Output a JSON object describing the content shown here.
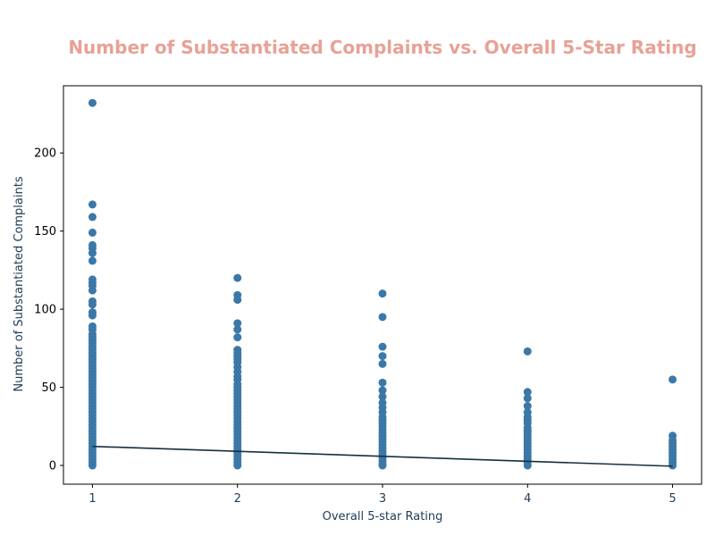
{
  "chart_data": {
    "type": "scatter",
    "title": "Number of Substantiated Complaints vs. Overall 5-Star Rating",
    "xlabel": "Overall 5-star Rating",
    "ylabel": "Number of Substantiated Complaints",
    "xlim": [
      0.8,
      5.2
    ],
    "ylim": [
      -12,
      243
    ],
    "xticks": [
      1,
      2,
      3,
      4,
      5
    ],
    "yticks": [
      0,
      50,
      100,
      150,
      200
    ],
    "grid": false,
    "legend": "none",
    "colors": {
      "title": "#e8a196",
      "points": "#3b78a8",
      "trend": "#15303f",
      "axis_text": "#1f3b57",
      "spine": "#000000"
    },
    "series": [
      {
        "x_value": 1,
        "points": [
          232,
          167,
          159,
          149,
          141,
          139,
          136,
          131,
          119,
          117,
          115,
          112,
          105,
          103,
          98,
          96,
          89,
          87,
          84,
          82,
          80,
          78,
          76,
          74,
          72,
          70,
          68,
          66,
          64,
          62,
          60,
          58,
          56,
          54,
          52,
          50,
          48,
          46,
          44,
          42,
          40,
          38,
          36,
          34,
          32,
          30,
          28,
          26,
          24,
          22,
          20,
          18,
          16,
          14,
          12,
          10,
          8,
          6,
          4,
          2,
          0
        ]
      },
      {
        "x_value": 2,
        "points": [
          120,
          109,
          106,
          91,
          87,
          82,
          74,
          72,
          70,
          68,
          66,
          63,
          60,
          57,
          55,
          52,
          50,
          48,
          46,
          44,
          42,
          40,
          38,
          36,
          34,
          32,
          30,
          28,
          26,
          24,
          22,
          20,
          18,
          16,
          14,
          12,
          10,
          8,
          6,
          4,
          2,
          0
        ]
      },
      {
        "x_value": 3,
        "points": [
          110,
          95,
          76,
          70,
          65,
          53,
          48,
          44,
          40,
          37,
          34,
          31,
          29,
          27,
          25,
          23,
          21,
          19,
          17,
          15,
          13,
          11,
          9,
          7,
          5,
          3,
          1,
          0
        ]
      },
      {
        "x_value": 4,
        "points": [
          73,
          47,
          43,
          38,
          34,
          31,
          29,
          27,
          24,
          22,
          20,
          18,
          16,
          14,
          12,
          10,
          8,
          6,
          4,
          2,
          0
        ]
      },
      {
        "x_value": 5,
        "points": [
          55,
          19,
          16,
          14,
          12,
          10,
          8,
          6,
          4,
          2,
          0
        ]
      }
    ],
    "trendline": {
      "x": [
        1,
        5
      ],
      "y": [
        12.2,
        -0.5
      ]
    }
  }
}
